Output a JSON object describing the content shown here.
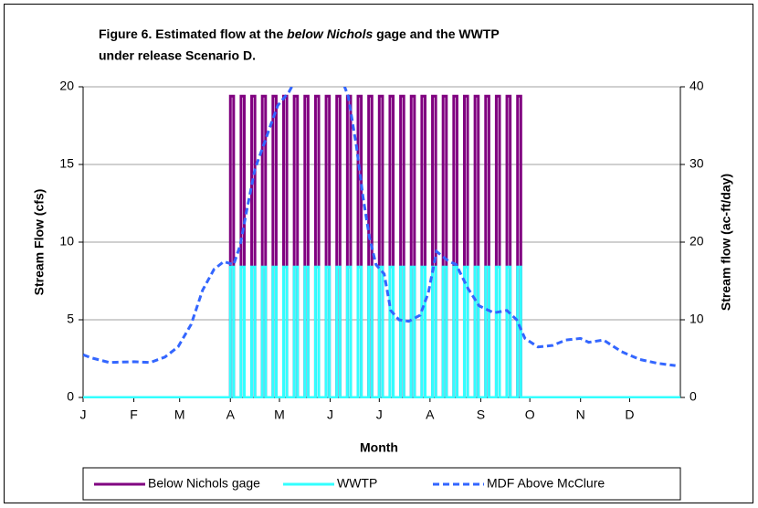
{
  "chart_data": {
    "type": "line",
    "title": [
      "Figure 6.  Estimated flow at the",
      "below Nichols",
      "gage and the WWTP",
      "under release Scenario D."
    ],
    "xlabel": "Month",
    "ylabel": "Stream Flow (cfs)",
    "y2label": "Stream flow (ac-ft/day)",
    "xlim": [
      0,
      365
    ],
    "xticks": [
      {
        "value": 0,
        "label": "J"
      },
      {
        "value": 31,
        "label": "F"
      },
      {
        "value": 59,
        "label": "M"
      },
      {
        "value": 90,
        "label": "A"
      },
      {
        "value": 120,
        "label": "M"
      },
      {
        "value": 151,
        "label": "J"
      },
      {
        "value": 181,
        "label": "J"
      },
      {
        "value": 212,
        "label": "A"
      },
      {
        "value": 243,
        "label": "S"
      },
      {
        "value": 273,
        "label": "O"
      },
      {
        "value": 304,
        "label": "N"
      },
      {
        "value": 334,
        "label": "D"
      }
    ],
    "ylim": [
      0,
      20
    ],
    "yticks": [
      0,
      5,
      10,
      15,
      20
    ],
    "y2lim": [
      0,
      40
    ],
    "y2ticks": [
      0,
      10,
      20,
      30,
      40
    ],
    "grid": true,
    "legend": "bottom",
    "x": [
      0,
      90,
      90,
      92,
      92,
      96.5,
      96.5,
      98.5,
      98.5,
      103,
      103,
      105,
      105,
      109.5,
      109.5,
      111.5,
      111.5,
      116,
      116,
      118,
      118,
      122.5,
      122.5,
      124.5,
      124.5,
      129,
      129,
      131,
      131,
      135.5,
      135.5,
      137.5,
      137.5,
      142,
      142,
      144,
      144,
      148.5,
      148.5,
      150.5,
      150.5,
      155,
      155,
      157,
      157,
      161.5,
      161.5,
      163.5,
      163.5,
      168,
      168,
      170,
      170,
      174.5,
      174.5,
      176.5,
      176.5,
      181,
      181,
      183,
      183,
      187.5,
      187.5,
      189.5,
      189.5,
      194,
      194,
      196,
      196,
      200.5,
      200.5,
      202.5,
      202.5,
      207,
      207,
      209,
      209,
      213.5,
      213.5,
      215.5,
      215.5,
      220,
      220,
      222,
      222,
      226.5,
      226.5,
      228.5,
      228.5,
      233,
      233,
      235,
      235,
      239.5,
      239.5,
      241.5,
      241.5,
      246,
      246,
      248,
      248,
      252.5,
      252.5,
      254.5,
      254.5,
      259,
      259,
      261,
      261,
      265.5,
      265.5,
      267.5,
      267.5,
      365
    ],
    "series": [
      {
        "name": "Below Nichols gage",
        "color": "#800080",
        "values": [
          0,
          0,
          19.4,
          19.4,
          0,
          0,
          19.4,
          19.4,
          0,
          0,
          19.4,
          19.4,
          0,
          0,
          19.4,
          19.4,
          0,
          0,
          19.4,
          19.4,
          0,
          0,
          19.4,
          19.4,
          0,
          0,
          19.4,
          19.4,
          0,
          0,
          19.4,
          19.4,
          0,
          0,
          19.4,
          19.4,
          0,
          0,
          19.4,
          19.4,
          0,
          0,
          19.4,
          19.4,
          0,
          0,
          19.4,
          19.4,
          0,
          0,
          19.4,
          19.4,
          0,
          0,
          19.4,
          19.4,
          0,
          0,
          19.4,
          19.4,
          0,
          0,
          19.4,
          19.4,
          0,
          0,
          19.4,
          19.4,
          0,
          0,
          19.4,
          19.4,
          0,
          0,
          19.4,
          19.4,
          0,
          0,
          19.4,
          19.4,
          0,
          0,
          19.4,
          19.4,
          0,
          0,
          19.4,
          19.4,
          0,
          0,
          19.4,
          19.4,
          0,
          0,
          19.4,
          19.4,
          0,
          0,
          19.4,
          19.4,
          0,
          0,
          19.4,
          19.4,
          0,
          0,
          19.4,
          19.4,
          0,
          0,
          19.4,
          19.4,
          0,
          0
        ]
      },
      {
        "name": "WWTP",
        "color": "#33ffff",
        "values": [
          0,
          0,
          8.4,
          8.4,
          0,
          0,
          8.4,
          8.4,
          0,
          0,
          8.4,
          8.4,
          0,
          0,
          8.4,
          8.4,
          0,
          0,
          8.4,
          8.4,
          0,
          0,
          8.4,
          8.4,
          0,
          0,
          8.4,
          8.4,
          0,
          0,
          8.4,
          8.4,
          0,
          0,
          8.4,
          8.4,
          0,
          0,
          8.4,
          8.4,
          0,
          0,
          8.4,
          8.4,
          0,
          0,
          8.4,
          8.4,
          0,
          0,
          8.4,
          8.4,
          0,
          0,
          8.4,
          8.4,
          0,
          0,
          8.4,
          8.4,
          0,
          0,
          8.4,
          8.4,
          0,
          0,
          8.4,
          8.4,
          0,
          0,
          8.4,
          8.4,
          0,
          0,
          8.4,
          8.4,
          0,
          0,
          8.4,
          8.4,
          0,
          0,
          8.4,
          8.4,
          0,
          0,
          8.4,
          8.4,
          0,
          0,
          8.4,
          8.4,
          0,
          0,
          8.4,
          8.4,
          0,
          0,
          8.4,
          8.4,
          0,
          0,
          8.4,
          8.4,
          0,
          0,
          8.4,
          8.4,
          0,
          0,
          8.4,
          8.4,
          0,
          0
        ]
      },
      {
        "name": "MDF Above McClure",
        "color": "#3366ff",
        "axis": "y2",
        "dashed": true,
        "x": [
          0,
          5,
          16,
          31,
          41,
          50,
          58,
          66,
          73,
          80,
          86,
          92,
          96,
          100,
          105,
          111,
          115,
          119,
          126,
          130,
          145,
          158,
          162,
          167,
          171,
          175,
          179,
          184,
          188,
          193,
          199,
          206,
          211,
          216,
          223,
          228,
          235,
          242,
          251,
          259,
          265,
          270,
          278,
          287,
          295,
          304,
          309,
          318,
          329,
          340,
          351,
          362
        ],
        "values": [
          5.5,
          5.1,
          4.5,
          4.6,
          4.5,
          5.2,
          6.5,
          9.4,
          13.8,
          16.5,
          17.5,
          17.1,
          19.6,
          24.1,
          29.4,
          32.9,
          35.3,
          37.6,
          39.4,
          41,
          42,
          41,
          38.8,
          32.4,
          25.9,
          20.6,
          17.1,
          15.9,
          11.2,
          10.0,
          9.8,
          10.6,
          13.5,
          18.8,
          17.6,
          17.1,
          14.1,
          11.8,
          10.9,
          11.2,
          10.0,
          7.6,
          6.5,
          6.7,
          7.4,
          7.6,
          7.1,
          7.4,
          5.9,
          4.9,
          4.4,
          4.1
        ]
      }
    ]
  }
}
